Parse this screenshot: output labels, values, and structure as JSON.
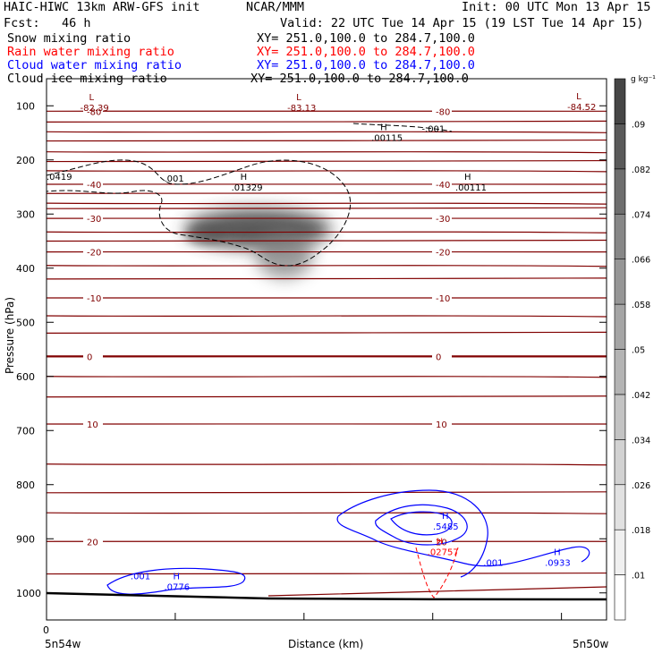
{
  "header": {
    "model": "HAIC-HIWC 13km ARW-GFS init",
    "org": "NCAR/MMM",
    "init": "Init: 00 UTC Mon 13 Apr 15",
    "fcst": "Fcst:   46 h",
    "valid": "Valid: 22 UTC Tue 14 Apr 15 (19 LST Tue 14 Apr 15)"
  },
  "fields": [
    {
      "name": "Snow mixing ratio",
      "xy": "XY= 251.0,100.0 to 284.7,100.0",
      "color": "#000000"
    },
    {
      "name": "Rain water mixing ratio",
      "xy": "XY= 251.0,100.0 to 284.7,100.0",
      "color": "#ff0000"
    },
    {
      "name": "Cloud water mixing ratio",
      "xy": "XY= 251.0,100.0 to 284.7,100.0",
      "color": "#0000ff"
    },
    {
      "name": "Cloud ice mixing ratio",
      "xy": "XY= 251.0,100.0 to 284.7,100.0",
      "color": "#000000"
    }
  ],
  "chart_data": {
    "type": "cross-section",
    "ylabel": "Pressure (hPa)",
    "xlabel": "Distance (km)",
    "x_start_label": "5n54w",
    "x_end_label": "5n50w",
    "x_tick_zero": "0",
    "y_range": [
      50,
      1050
    ],
    "y_ticks": [
      100,
      200,
      300,
      400,
      500,
      600,
      700,
      800,
      900,
      1000
    ],
    "colorbar": {
      "unit": "g kg⁻¹",
      "levels": [
        ".01",
        ".018",
        ".026",
        ".034",
        ".042",
        ".05",
        ".058",
        ".066",
        ".074",
        ".082",
        ".09"
      ],
      "colors": [
        "#ffffff",
        "#f0f0f0",
        "#e1e1e1",
        "#d2d2d2",
        "#c3c3c3",
        "#b4b4b4",
        "#a5a5a5",
        "#969696",
        "#878787",
        "#6e6e6e",
        "#5a5a5a",
        "#464646"
      ]
    },
    "temperature_contours": [
      {
        "label": "-80",
        "p": 110
      },
      {
        "label": "-40",
        "p": 245
      },
      {
        "label": "-30",
        "p": 308
      },
      {
        "label": "-20",
        "p": 370
      },
      {
        "label": "-10",
        "p": 455
      },
      {
        "label": "0",
        "p": 563
      },
      {
        "label": "10",
        "p": 688
      },
      {
        "label": "20",
        "p": 905
      }
    ],
    "annotations": [
      {
        "mark": "L",
        "value": "-82.39",
        "color": "#800000",
        "x": 0.06,
        "p": 90
      },
      {
        "mark": "L",
        "value": "-83.13",
        "color": "#800000",
        "x": 0.43,
        "p": 90
      },
      {
        "mark": "L",
        "value": "-84.52",
        "color": "#800000",
        "x": 0.93,
        "p": 88
      },
      {
        "mark": "H",
        "value": ".00115",
        "color": "#000000",
        "x": 0.58,
        "p": 145
      },
      {
        "mark": "H",
        "value": ".01329",
        "color": "#000000",
        "x": 0.33,
        "p": 237
      },
      {
        "mark": "H",
        "value": ".00111",
        "color": "#000000",
        "x": 0.73,
        "p": 237
      },
      {
        "mark": "H",
        "value": ".5485",
        "color": "#0000ff",
        "x": 0.69,
        "p": 863
      },
      {
        "mark": "H",
        "value": ".02757",
        "color": "#ff0000",
        "x": 0.68,
        "p": 910
      },
      {
        "mark": "H",
        "value": ".0933",
        "color": "#0000ff",
        "x": 0.89,
        "p": 930
      },
      {
        "mark": "H",
        "value": ".0776",
        "color": "#0000ff",
        "x": 0.21,
        "p": 975
      }
    ],
    "contour_labels": [
      {
        "text": ".001",
        "color": "#000000",
        "x": 0.21,
        "p": 240
      },
      {
        "text": "-.001",
        "color": "#000000",
        "x": 0.67,
        "p": 148
      },
      {
        "text": ".0419",
        "color": "#000000",
        "x": 0.0,
        "p": 237
      },
      {
        "text": ".001",
        "color": "#0000ff",
        "x": 0.15,
        "p": 975
      },
      {
        "text": ".001",
        "color": "#0000ff",
        "x": 0.78,
        "p": 950
      }
    ]
  }
}
